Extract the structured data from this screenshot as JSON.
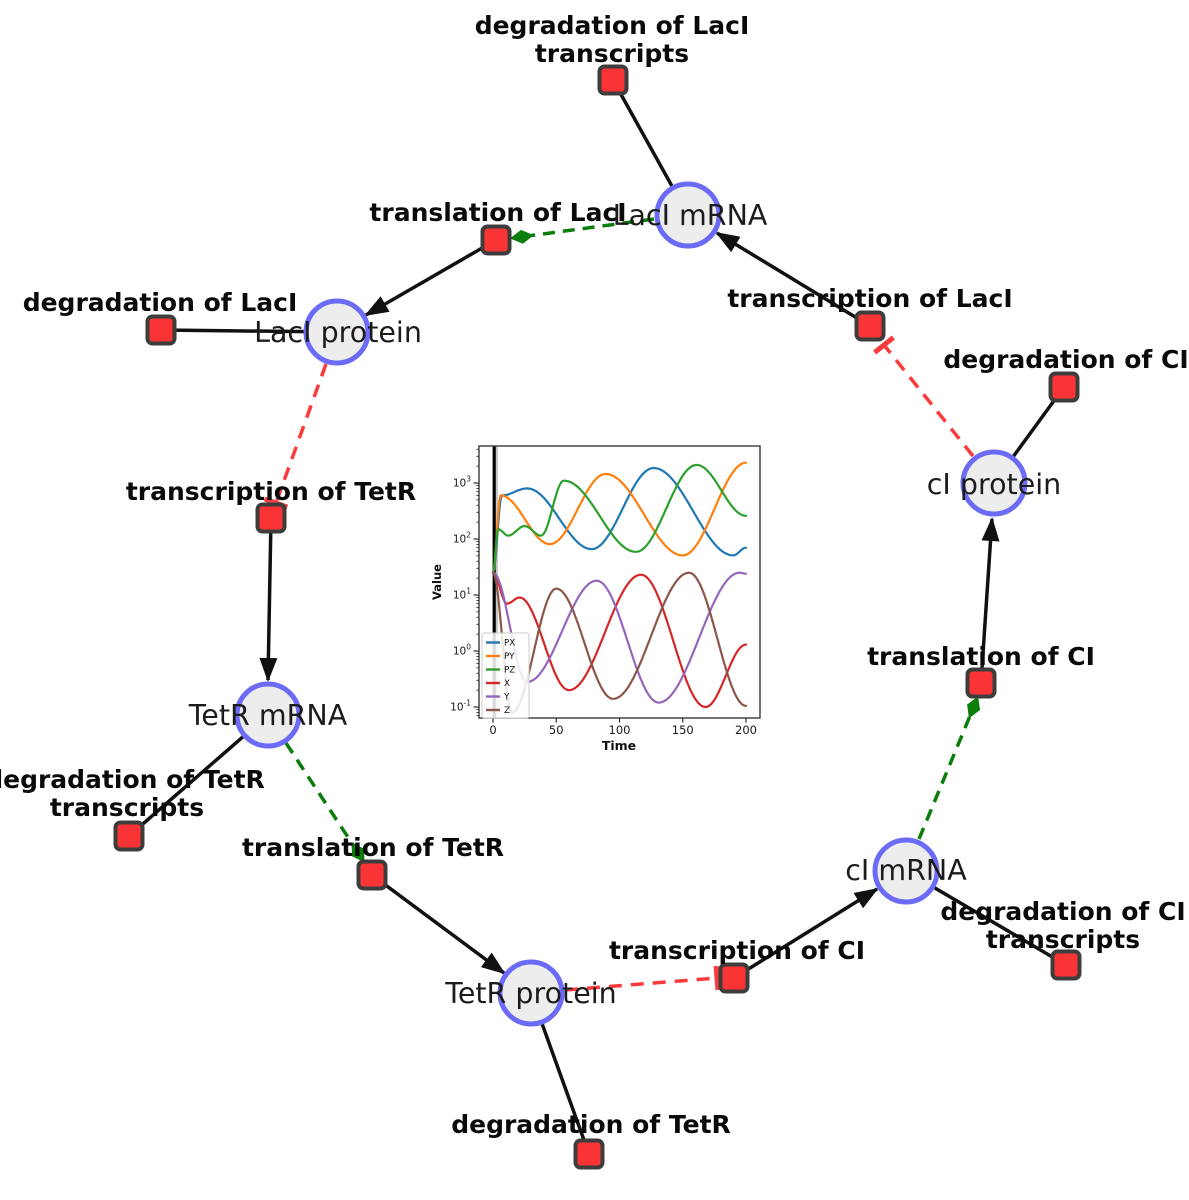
{
  "network": {
    "species": [
      {
        "label": "LacI mRNA"
      },
      {
        "label": "LacI protein"
      },
      {
        "label": "TetR mRNA"
      },
      {
        "label": "TetR protein"
      },
      {
        "label": "cI mRNA"
      },
      {
        "label": "cI protein"
      }
    ],
    "reactions": [
      {
        "line1": "degradation of LacI",
        "line2": "transcripts"
      },
      {
        "line1": "translation of LacI"
      },
      {
        "line1": "transcription of LacI"
      },
      {
        "line1": "degradation of LacI"
      },
      {
        "line1": "degradation of CI"
      },
      {
        "line1": "transcription of TetR"
      },
      {
        "line1": "translation of CI"
      },
      {
        "line1": "degradation of TetR",
        "line2": "transcripts"
      },
      {
        "line1": "translation of TetR"
      },
      {
        "line1": "transcription of CI"
      },
      {
        "line1": "degradation of CI",
        "line2": "transcripts"
      },
      {
        "line1": "degradation of TetR"
      }
    ],
    "colors": {
      "species_fill": "#ededed",
      "species_border": "#6b6bf8",
      "reaction_fill": "#fa3434",
      "reaction_border": "#3d3d3d",
      "production_edge": "#111111",
      "modifier_edge": "#0a7d0a",
      "inhibition_edge": "#fb3b3b"
    }
  },
  "chart_data": {
    "type": "line",
    "title": "",
    "xlabel": "Time",
    "ylabel": "Value",
    "y_scale": "log",
    "x_ticks": [
      0,
      50,
      100,
      150,
      200
    ],
    "y_tick_exponents": [
      3,
      2,
      1,
      0,
      -1
    ],
    "xlim": [
      -12,
      204
    ],
    "ylim": [
      0.06,
      4500
    ],
    "legend_position": "lower left",
    "event_line_x": 1,
    "anchor_format": "[time, value] extrema and shape points read from the plot; curves oscillate between anchors (interpolated smoothly in log space)",
    "series": [
      {
        "name": "PX",
        "color": "#1f77b4",
        "anchors": [
          [
            0,
            25
          ],
          [
            7,
            600
          ],
          [
            27,
            800
          ],
          [
            78,
            66
          ],
          [
            127,
            1850
          ],
          [
            190,
            51
          ],
          [
            200,
            70
          ]
        ]
      },
      {
        "name": "PY",
        "color": "#ff7f0e",
        "anchors": [
          [
            0,
            25
          ],
          [
            6,
            600
          ],
          [
            45,
            81
          ],
          [
            89,
            1450
          ],
          [
            150,
            51
          ],
          [
            200,
            2300
          ]
        ]
      },
      {
        "name": "PZ",
        "color": "#2ca02c",
        "anchors": [
          [
            0,
            25
          ],
          [
            4,
            150
          ],
          [
            12,
            115
          ],
          [
            25,
            170
          ],
          [
            38,
            115
          ],
          [
            56,
            1100
          ],
          [
            113,
            59
          ],
          [
            161,
            2100
          ],
          [
            200,
            260
          ]
        ]
      },
      {
        "name": "X",
        "color": "#d62728",
        "anchors": [
          [
            0,
            25
          ],
          [
            11,
            7
          ],
          [
            21,
            9
          ],
          [
            60,
            0.2
          ],
          [
            117,
            23
          ],
          [
            168,
            0.1
          ],
          [
            200,
            1.3
          ]
        ]
      },
      {
        "name": "Y",
        "color": "#9467bd",
        "anchors": [
          [
            0,
            25
          ],
          [
            27,
            0.28
          ],
          [
            82,
            18
          ],
          [
            131,
            0.12
          ],
          [
            195,
            25
          ],
          [
            200,
            24
          ]
        ]
      },
      {
        "name": "Z",
        "color": "#8c564b",
        "anchors": [
          [
            0,
            25
          ],
          [
            15,
            0.08
          ],
          [
            50,
            13
          ],
          [
            95,
            0.14
          ],
          [
            155,
            25
          ],
          [
            200,
            0.105
          ]
        ]
      }
    ]
  }
}
